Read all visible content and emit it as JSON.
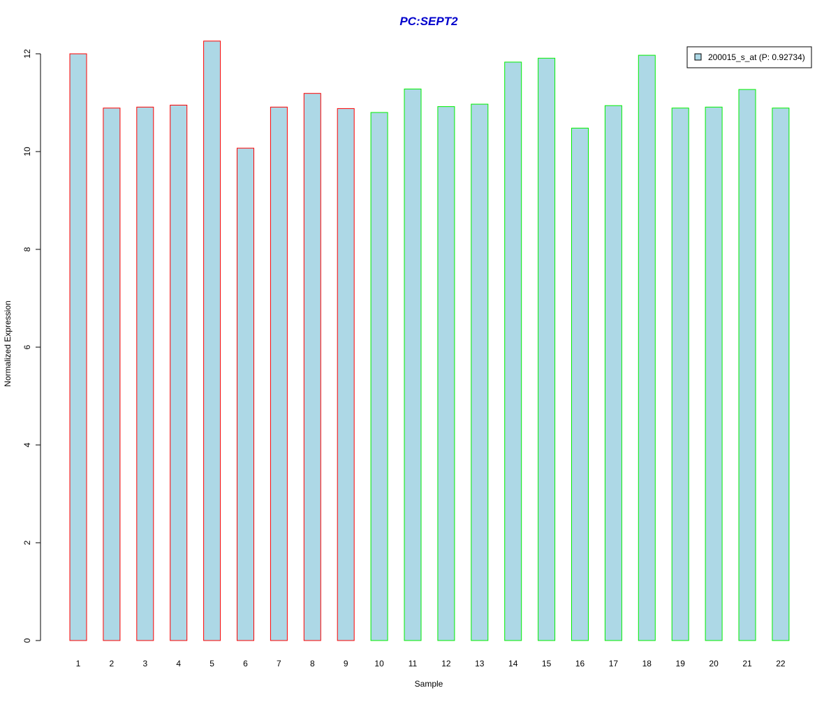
{
  "chart_data": {
    "type": "bar",
    "title": "PC:SEPT2",
    "xlabel": "Sample",
    "ylabel": "Normalized Expression",
    "ylim": [
      0,
      12.4
    ],
    "yticks": [
      0,
      2,
      4,
      6,
      8,
      10,
      12
    ],
    "ytick_labels": [
      "0",
      "2",
      "4",
      "6",
      "8",
      "10",
      "12"
    ],
    "categories": [
      "1",
      "2",
      "3",
      "4",
      "5",
      "6",
      "7",
      "8",
      "9",
      "10",
      "11",
      "12",
      "13",
      "14",
      "15",
      "16",
      "17",
      "18",
      "19",
      "20",
      "21",
      "22"
    ],
    "series": [
      {
        "name": "200015_s_at (P: 0.92734)",
        "values": [
          12.0,
          10.89,
          10.91,
          10.95,
          12.26,
          10.07,
          10.91,
          11.19,
          10.88,
          10.8,
          11.28,
          10.92,
          10.97,
          11.83,
          11.91,
          10.48,
          10.94,
          11.97,
          10.89,
          10.91,
          11.27,
          10.89
        ]
      }
    ],
    "groups": [
      {
        "samples": [
          1,
          9
        ],
        "border_color": "#ff0000"
      },
      {
        "samples": [
          10,
          22
        ],
        "border_color": "#00ee00"
      }
    ],
    "bar_fill": "#add8e6",
    "title_color": "#0000cc",
    "grid": false,
    "legend": {
      "position": "top-right",
      "entries": [
        "200015_s_at (P: 0.92734)"
      ]
    }
  }
}
